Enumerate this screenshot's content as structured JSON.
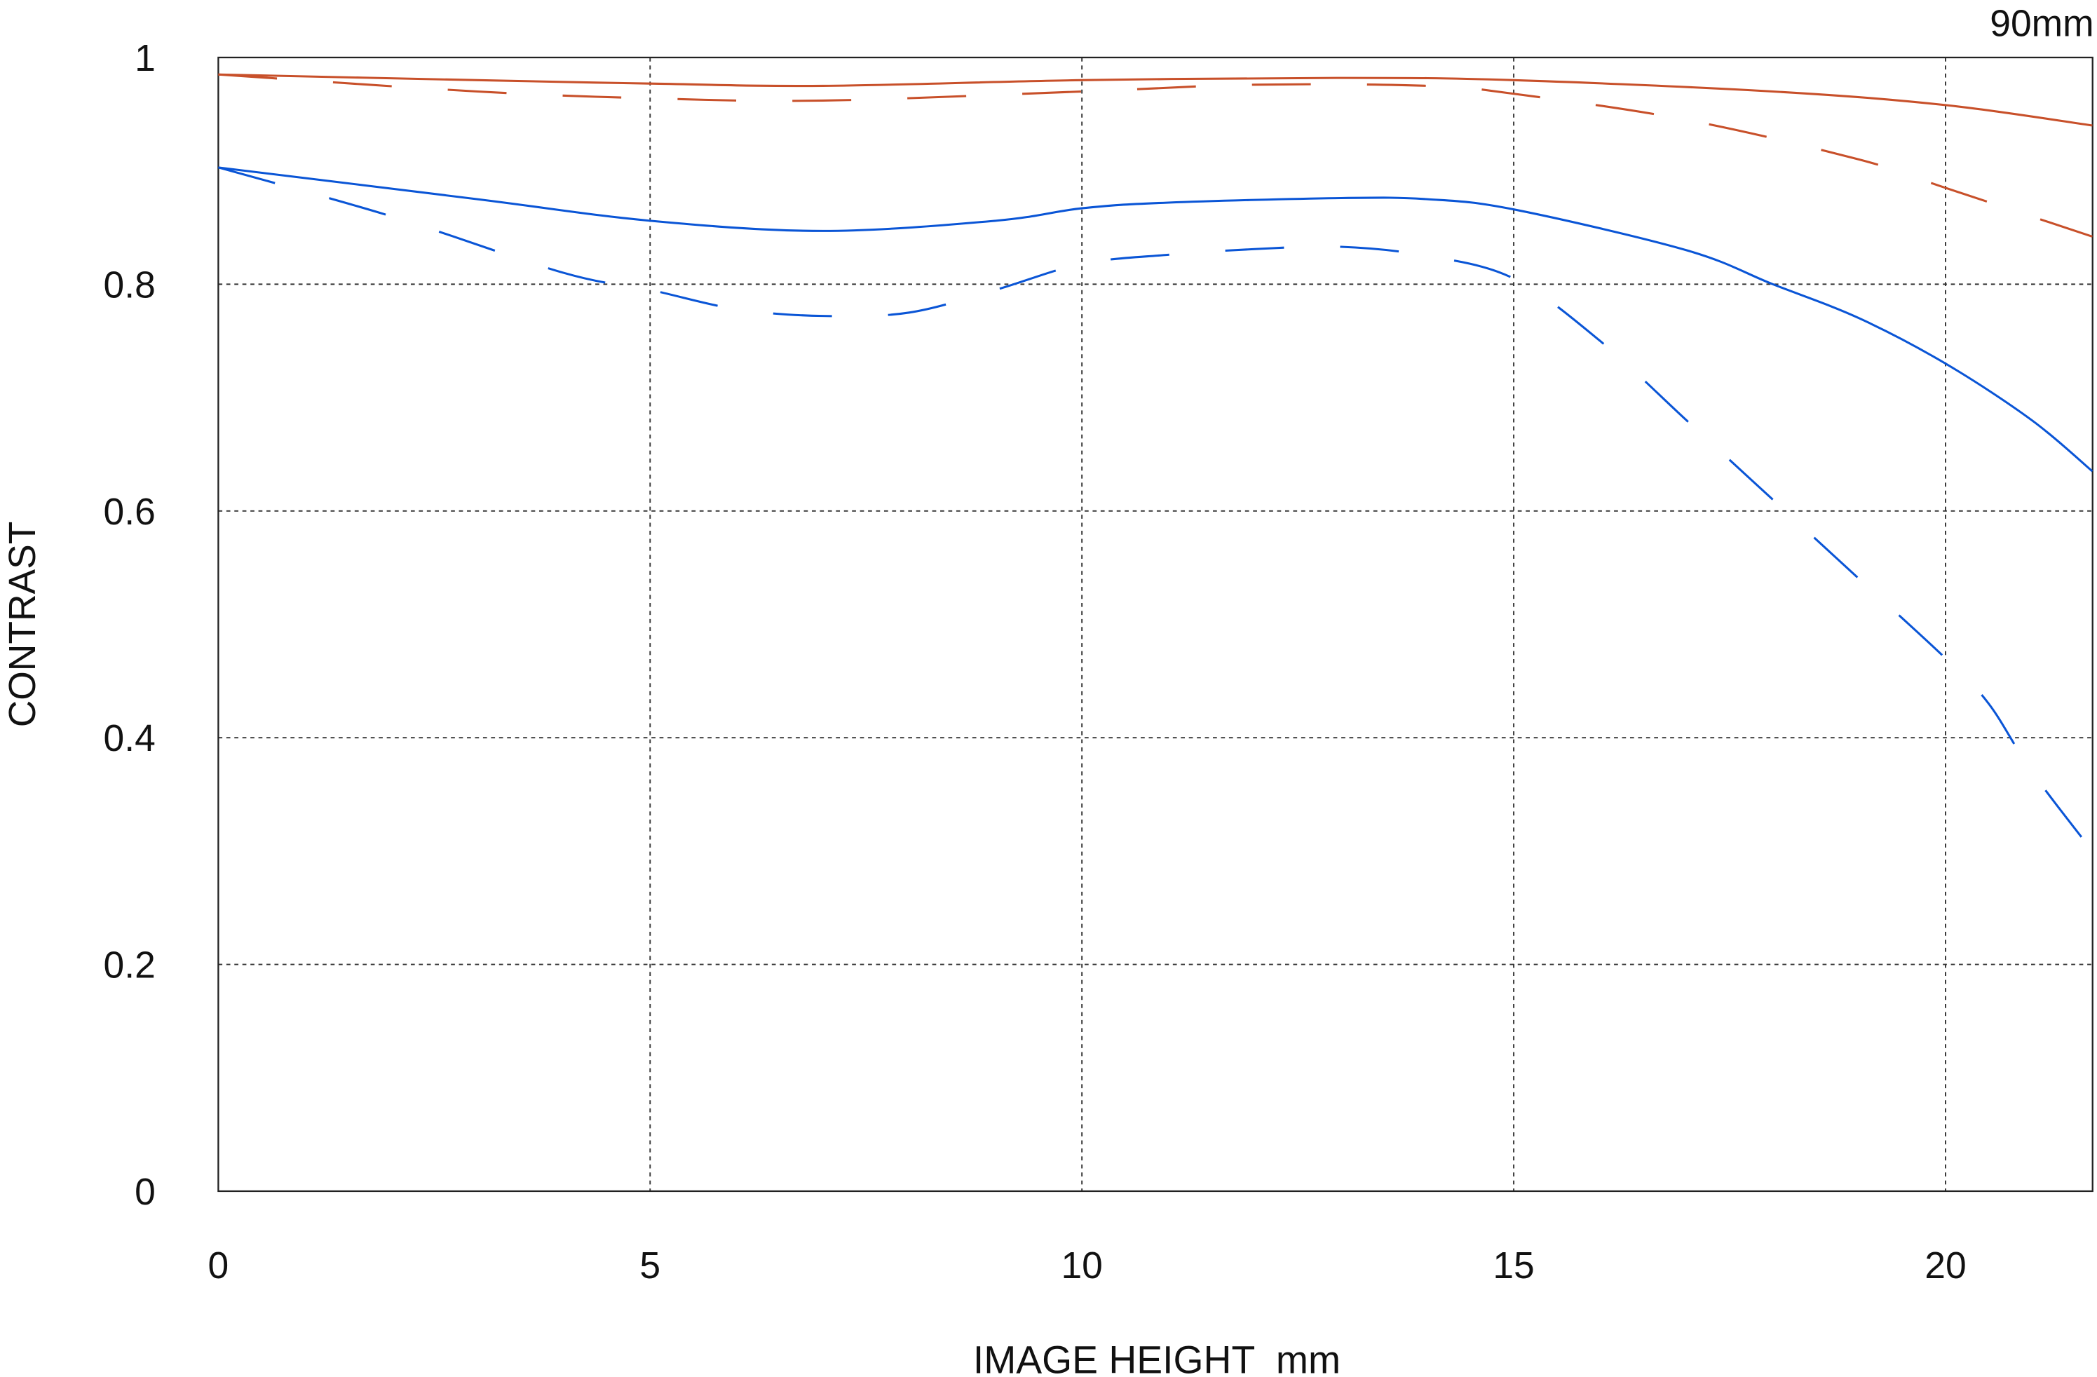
{
  "chart_data": {
    "type": "line",
    "title": "90mm",
    "xlabel": "IMAGE HEIGHT  mm",
    "ylabel": "CONTRAST",
    "xlim": [
      0,
      21.7
    ],
    "ylim": [
      0,
      1
    ],
    "xticks": [
      0,
      5,
      10,
      15,
      20
    ],
    "xtick_labels": [
      "0",
      "5",
      "10",
      "15",
      "20"
    ],
    "yticks": [
      0,
      0.2,
      0.4,
      0.6,
      0.8,
      1
    ],
    "ytick_labels": [
      "0",
      "0.2",
      "0.4",
      "0.6",
      "0.8",
      "1"
    ],
    "grid": true,
    "series": [
      {
        "name": "red-solid",
        "color": "#c8502a",
        "style": "solid",
        "x": [
          0,
          3,
          5,
          7,
          10,
          13,
          15,
          18,
          20,
          21.7
        ],
        "y": [
          0.985,
          0.98,
          0.977,
          0.975,
          0.98,
          0.982,
          0.98,
          0.97,
          0.958,
          0.94
        ]
      },
      {
        "name": "red-dashed",
        "color": "#c8502a",
        "style": "dashed",
        "x": [
          0,
          3,
          5,
          7,
          10,
          12,
          14,
          15,
          17,
          19,
          20,
          21.7
        ],
        "y": [
          0.985,
          0.97,
          0.964,
          0.962,
          0.97,
          0.976,
          0.975,
          0.968,
          0.945,
          0.91,
          0.885,
          0.842
        ]
      },
      {
        "name": "blue-solid",
        "color": "#0a55d6",
        "style": "solid",
        "x": [
          0,
          3,
          5,
          7,
          9,
          10,
          11,
          13,
          14,
          15,
          17,
          18,
          19,
          20,
          21,
          21.7
        ],
        "y": [
          0.903,
          0.875,
          0.856,
          0.847,
          0.856,
          0.867,
          0.872,
          0.876,
          0.875,
          0.866,
          0.83,
          0.8,
          0.77,
          0.73,
          0.68,
          0.635
        ]
      },
      {
        "name": "blue-dashed",
        "color": "#0a55d6",
        "style": "dashed",
        "x": [
          0,
          2,
          4,
          5,
          6,
          7,
          8,
          9,
          10,
          11,
          12,
          13,
          14,
          15,
          16,
          17,
          18,
          19,
          20,
          20.5,
          21,
          21.7
        ],
        "y": [
          0.903,
          0.86,
          0.81,
          0.795,
          0.778,
          0.772,
          0.775,
          0.795,
          0.818,
          0.826,
          0.831,
          0.833,
          0.825,
          0.805,
          0.75,
          0.68,
          0.61,
          0.54,
          0.47,
          0.43,
          0.37,
          0.3
        ]
      }
    ]
  }
}
